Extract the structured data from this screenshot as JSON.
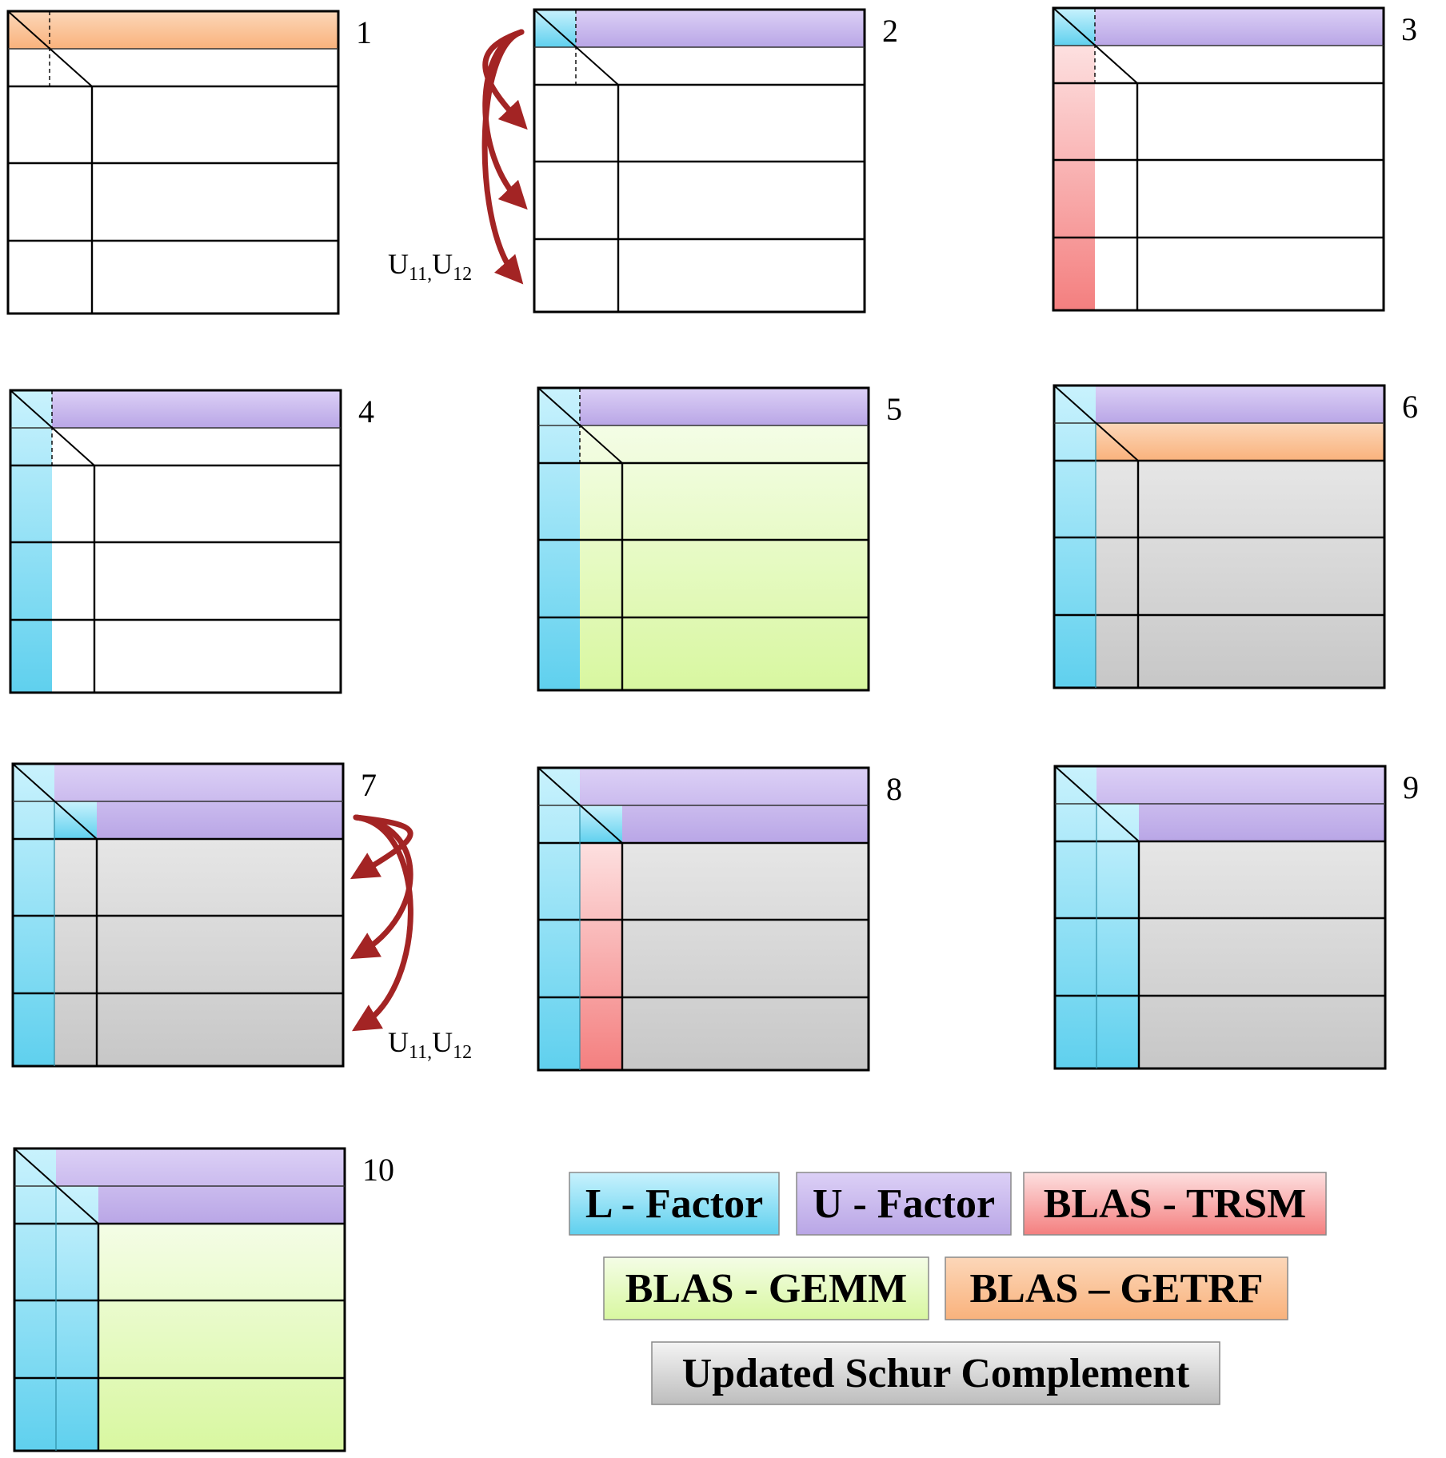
{
  "colors": {
    "l_factor": "#5fd0ee",
    "u_factor": "#b9a6e6",
    "trsm": "#f47f7f",
    "gemm": "#d8f7a0",
    "getrf": "#f9b27c",
    "schur": "#c7c7c7",
    "arrow": "#a32424"
  },
  "panels": [
    {
      "number": "1",
      "state": "getrf_first"
    },
    {
      "number": "2",
      "state": "u_broadcast",
      "arrow_label_main": "U",
      "arrow_sub_1": "11,",
      "arrow_sub_2": "12"
    },
    {
      "number": "3",
      "state": "trsm_first"
    },
    {
      "number": "4",
      "state": "l_first"
    },
    {
      "number": "5",
      "state": "gemm_first"
    },
    {
      "number": "6",
      "state": "getrf_second"
    },
    {
      "number": "7",
      "state": "u_second"
    },
    {
      "number": "8",
      "state": "trsm_second"
    },
    {
      "number": "9",
      "state": "l_second"
    },
    {
      "number": "10",
      "state": "gemm_second"
    }
  ],
  "arrow2": {
    "label_main": "U",
    "sub_1": "11,",
    "sub_2": "12"
  },
  "arrow7": {
    "label_main": "U",
    "sub_1": "11,",
    "sub_2": "12"
  },
  "legend": [
    {
      "key": "l_factor",
      "label": "L - Factor"
    },
    {
      "key": "u_factor",
      "label": "U - Factor"
    },
    {
      "key": "trsm",
      "label": "BLAS - TRSM"
    },
    {
      "key": "gemm",
      "label": "BLAS - GEMM"
    },
    {
      "key": "getrf",
      "label": "BLAS – GETRF"
    },
    {
      "key": "schur",
      "label": "Updated Schur Complement"
    }
  ]
}
